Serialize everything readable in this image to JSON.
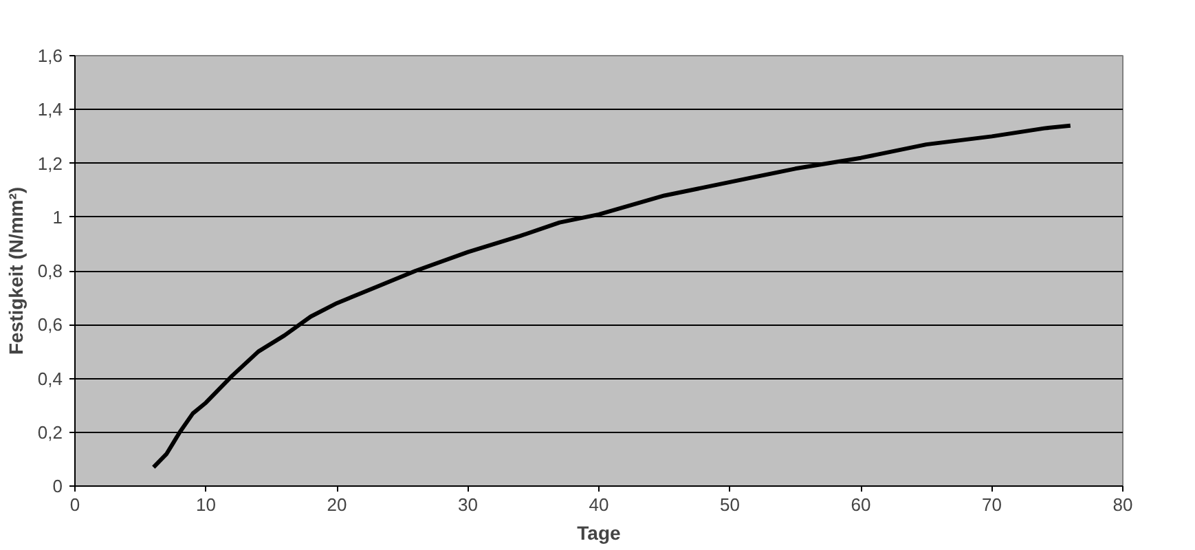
{
  "chart_data": {
    "type": "line",
    "xlabel": "Tage",
    "ylabel": "Festigkeit (N/mm²)",
    "x": [
      6,
      7,
      8,
      9,
      10,
      12,
      14,
      16,
      18,
      20,
      23,
      26,
      30,
      34,
      37,
      40,
      45,
      50,
      55,
      60,
      65,
      70,
      74,
      76
    ],
    "series": [
      {
        "color": "#000000",
        "values": [
          0.07,
          0.12,
          0.2,
          0.27,
          0.31,
          0.41,
          0.5,
          0.56,
          0.63,
          0.68,
          0.74,
          0.8,
          0.87,
          0.93,
          0.98,
          1.01,
          1.08,
          1.13,
          1.18,
          1.22,
          1.27,
          1.3,
          1.33,
          1.34
        ]
      }
    ],
    "xlim": [
      0,
      80
    ],
    "xticks": [
      0,
      10,
      20,
      30,
      40,
      50,
      60,
      70,
      80
    ],
    "ylim": [
      0,
      1.6
    ],
    "yticks": [
      {
        "value": 0,
        "label": "0"
      },
      {
        "value": 0.2,
        "label": "0,2"
      },
      {
        "value": 0.4,
        "label": "0,4"
      },
      {
        "value": 0.6,
        "label": "0,6"
      },
      {
        "value": 0.8,
        "label": "0,8"
      },
      {
        "value": 1,
        "label": "1"
      },
      {
        "value": 1.2,
        "label": "1,2"
      },
      {
        "value": 1.4,
        "label": "1,4"
      },
      {
        "value": 1.6,
        "label": "1,6"
      }
    ],
    "grid": "y",
    "marker": "none",
    "line_style": "solid"
  }
}
